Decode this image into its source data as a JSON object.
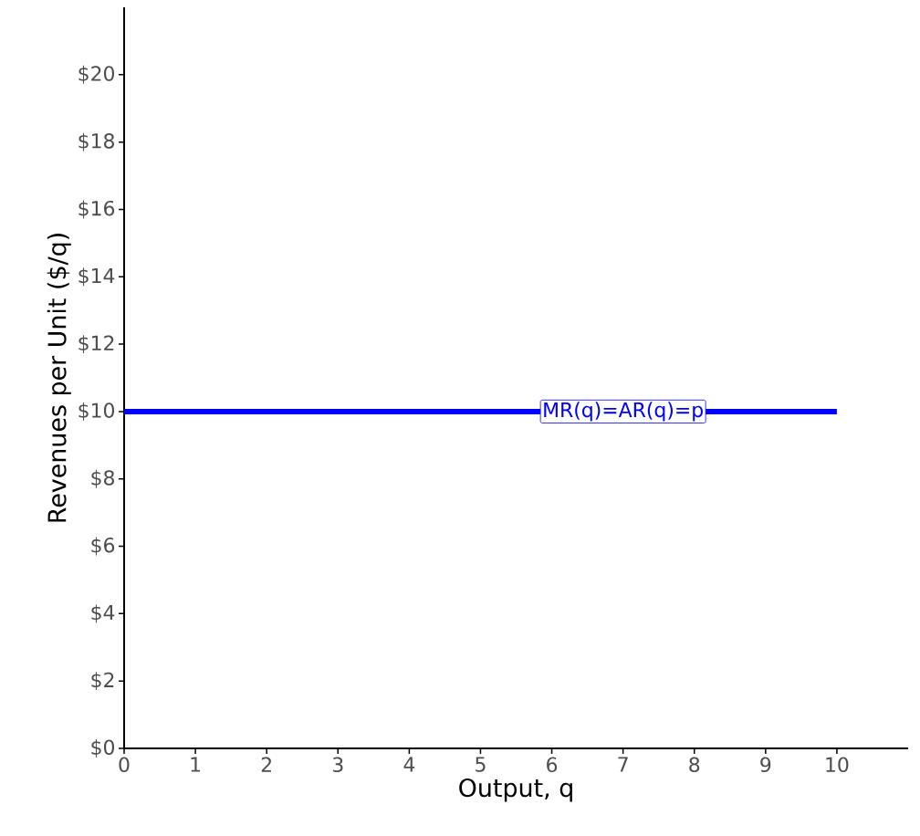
{
  "chart_data": {
    "type": "line",
    "xlabel": "Output, q",
    "ylabel": "Revenues per Unit ($/q)",
    "x": [
      0,
      10
    ],
    "series": [
      {
        "color": "#0000ff",
        "values": [
          10,
          10
        ]
      }
    ],
    "annotations": [
      {
        "text": "MR(q)=AR(q)=p",
        "x": 7,
        "y": 10
      }
    ],
    "xlim": [
      0,
      11
    ],
    "ylim": [
      0,
      22
    ],
    "xticks": [
      0,
      1,
      2,
      3,
      4,
      5,
      6,
      7,
      8,
      9,
      10
    ],
    "yticks": [
      {
        "value": 0,
        "label": "$0"
      },
      {
        "value": 2,
        "label": "$2"
      },
      {
        "value": 4,
        "label": "$4"
      },
      {
        "value": 6,
        "label": "$6"
      },
      {
        "value": 8,
        "label": "$8"
      },
      {
        "value": 10,
        "label": "$10"
      },
      {
        "value": 12,
        "label": "$12"
      },
      {
        "value": 14,
        "label": "$14"
      },
      {
        "value": 16,
        "label": "$16"
      },
      {
        "value": 18,
        "label": "$18"
      },
      {
        "value": 20,
        "label": "$20"
      }
    ]
  }
}
